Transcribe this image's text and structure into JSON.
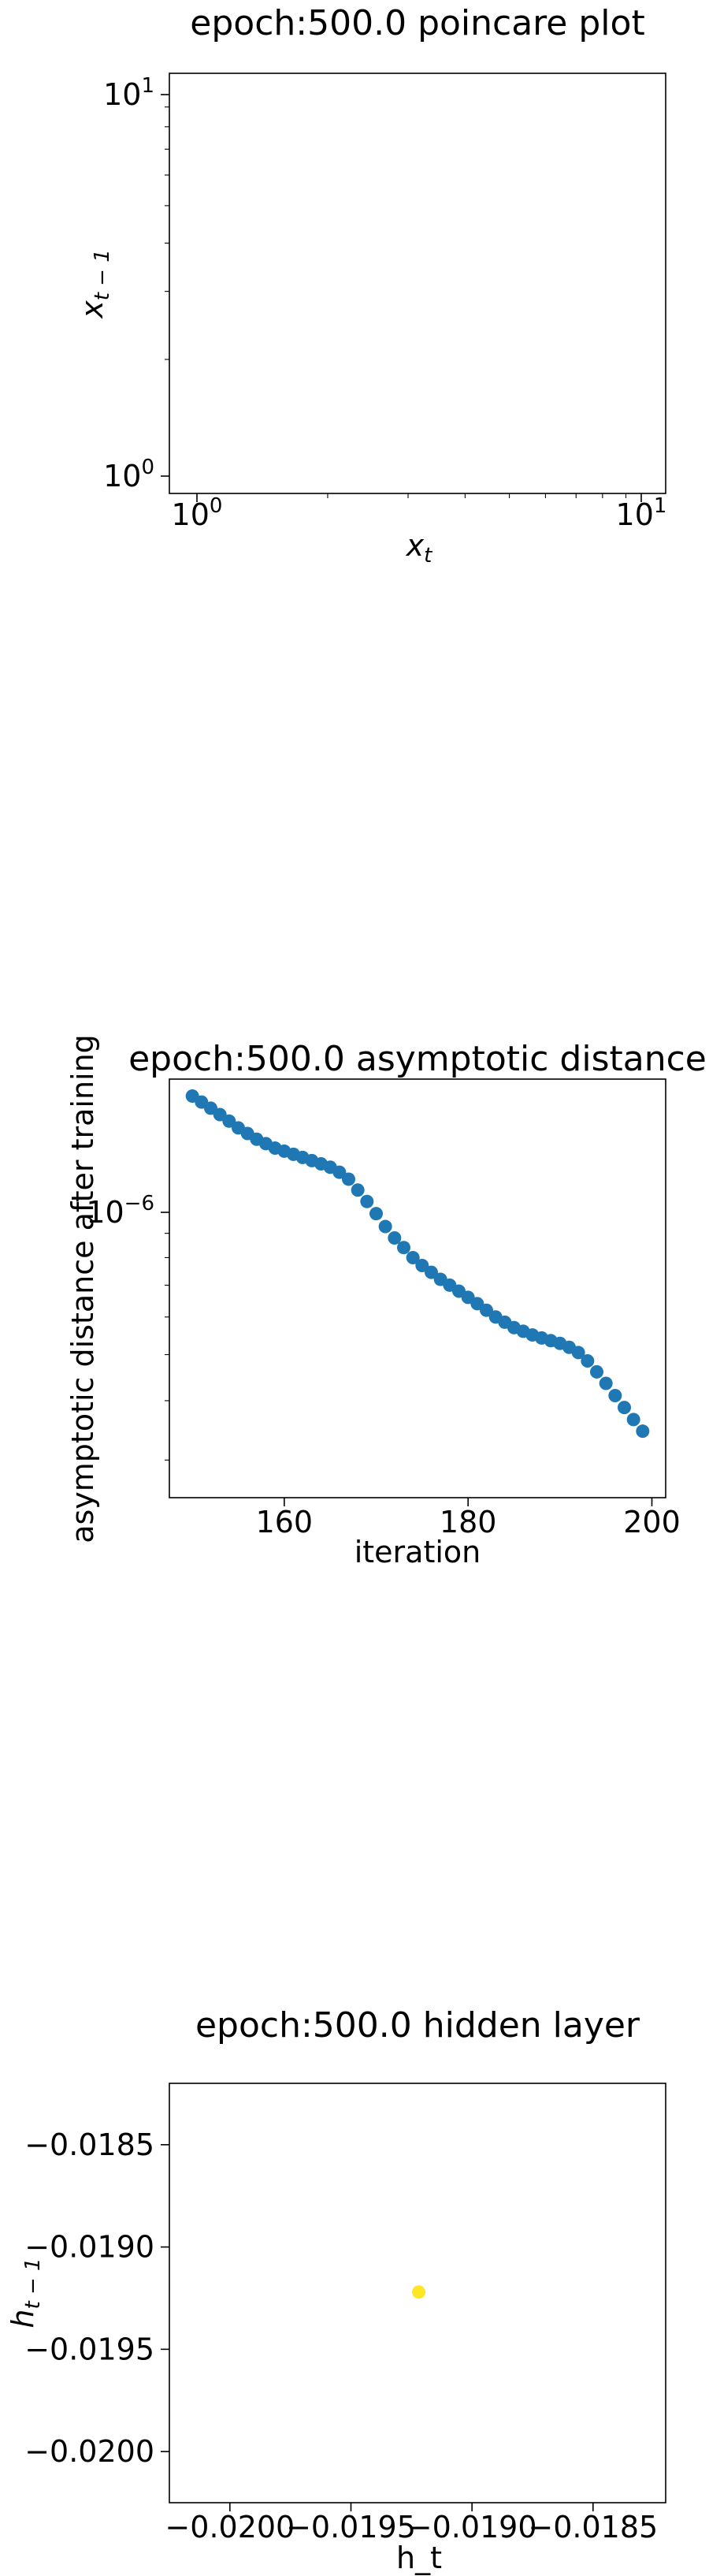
{
  "chart_data": [
    {
      "type": "scatter",
      "title": "epoch:500.0 poincare plot",
      "xlabel": "x_t",
      "ylabel": "x_{t-1}",
      "xscale": "log",
      "yscale": "log",
      "xlim": [
        0.9,
        11
      ],
      "ylim": [
        0.9,
        11
      ],
      "x_ticks": [
        1,
        10
      ],
      "y_ticks": [
        1,
        10
      ],
      "points": [],
      "grid": false
    },
    {
      "type": "scatter",
      "title": "epoch:500.0 asymptotic distance",
      "xlabel": "iteration",
      "ylabel": "asymptotic distance after training",
      "yscale": "log",
      "xlim": [
        147.5,
        201.5
      ],
      "ylim": [
        2.5e-07,
        1.9e-06
      ],
      "x_ticks": [
        160,
        180,
        200
      ],
      "y_ticks": [
        1e-06
      ],
      "color": "#1f77b4",
      "x": [
        150,
        151,
        152,
        153,
        154,
        155,
        156,
        157,
        158,
        159,
        160,
        161,
        162,
        163,
        164,
        165,
        166,
        167,
        168,
        169,
        170,
        171,
        172,
        173,
        174,
        175,
        176,
        177,
        178,
        179,
        180,
        181,
        182,
        183,
        184,
        185,
        186,
        187,
        188,
        189,
        190,
        191,
        192,
        193,
        194,
        195,
        196,
        197,
        198,
        199
      ],
      "y": [
        1.75e-06,
        1.7e-06,
        1.65e-06,
        1.6e-06,
        1.55e-06,
        1.5e-06,
        1.46e-06,
        1.42e-06,
        1.39e-06,
        1.36e-06,
        1.34e-06,
        1.32e-06,
        1.3e-06,
        1.28e-06,
        1.26e-06,
        1.24e-06,
        1.21e-06,
        1.17e-06,
        1.11e-06,
        1.05e-06,
        9.9e-07,
        9.3e-07,
        8.8e-07,
        8.4e-07,
        8e-07,
        7.7e-07,
        7.45e-07,
        7.2e-07,
        7e-07,
        6.8e-07,
        6.6e-07,
        6.4e-07,
        6.2e-07,
        6e-07,
        5.85e-07,
        5.7e-07,
        5.6e-07,
        5.5e-07,
        5.42e-07,
        5.35e-07,
        5.28e-07,
        5.18e-07,
        5.05e-07,
        4.85e-07,
        4.6e-07,
        4.35e-07,
        4.1e-07,
        3.87e-07,
        3.65e-07,
        3.45e-07
      ],
      "grid": false
    },
    {
      "type": "scatter",
      "title": "epoch:500.0 hidden layer",
      "xlabel": "h_t",
      "ylabel": "h_{t-1}",
      "xlim": [
        -0.02025,
        -0.0182
      ],
      "ylim": [
        -0.02025,
        -0.0182
      ],
      "x_ticks": [
        -0.02,
        -0.0195,
        -0.019,
        -0.0185
      ],
      "y_ticks": [
        -0.0185,
        -0.019,
        -0.0195,
        -0.02
      ],
      "x_tick_labels": [
        "−0.0200",
        "−0.0195",
        "−0.0190",
        "−0.0185"
      ],
      "y_tick_labels": [
        "−0.0185",
        "−0.0190",
        "−0.0195",
        "−0.0200"
      ],
      "color": "#fde725",
      "x": [
        -0.01922
      ],
      "y": [
        -0.01922
      ],
      "grid": false
    }
  ]
}
